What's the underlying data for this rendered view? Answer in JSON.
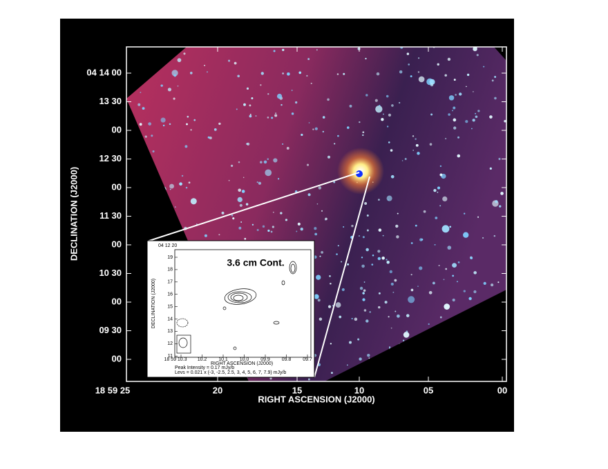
{
  "figure": {
    "xlabel": "RIGHT ASCENSION (J2000)",
    "ylabel": "DECLINATION (J2000)",
    "xticks": [
      "18 59 25",
      "20",
      "15",
      "10",
      "05",
      "00"
    ],
    "yticks": [
      "04 14 00",
      "13 30",
      "00",
      "12 30",
      "00",
      "11 30",
      "00",
      "10 30",
      "00",
      "09 30",
      "00"
    ]
  },
  "inset": {
    "title": "3.6 cm Cont.",
    "xlabel": "RIGHT ASCENSION (J2000)",
    "ylabel": "DECLINATION (J2000)",
    "ytop": "04 12 20",
    "yticks": [
      "19",
      "18",
      "17",
      "16",
      "15",
      "14",
      "13",
      "12",
      "11"
    ],
    "xticks": [
      "18 59 10.3",
      "10.2",
      "10.1",
      "10.0",
      "09.9",
      "09.8",
      "09.7"
    ],
    "peak": "Peak Intensity = 0.17 mJy/b",
    "levels": "Levs = 0.021 x (-3, -2.5, 2.5, 3, 4, 5, 6, 7, 7.9) mJy/b"
  }
}
